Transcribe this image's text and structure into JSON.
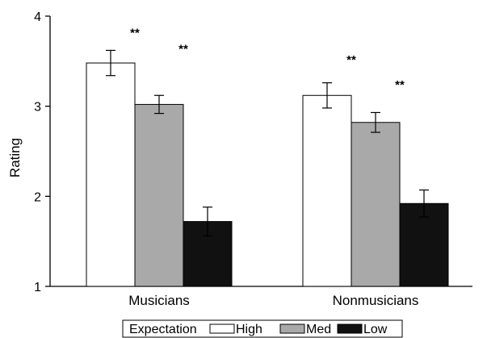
{
  "chart_data": {
    "type": "bar",
    "ylabel": "Rating",
    "xlabel": "",
    "ylim": [
      1,
      4
    ],
    "yticks": [
      1,
      2,
      3,
      4
    ],
    "categories": [
      "Musicians",
      "Nonmusicians"
    ],
    "legend_title": "Expectation",
    "legend_placement": "bottom",
    "grid": false,
    "series": [
      {
        "name": "High",
        "color": "#ffffff",
        "values": [
          3.48,
          3.12
        ],
        "errors": [
          0.14,
          0.14
        ]
      },
      {
        "name": "Med",
        "color": "#a9a9a9",
        "values": [
          3.02,
          2.82
        ],
        "errors": [
          0.1,
          0.11
        ]
      },
      {
        "name": "Low",
        "color": "#111111",
        "values": [
          1.72,
          1.92
        ],
        "errors": [
          0.16,
          0.15
        ]
      }
    ],
    "annotations": [
      {
        "text": "**",
        "category": "Musicians",
        "between": [
          "High",
          "Med"
        ],
        "y": 3.88
      },
      {
        "text": "**",
        "category": "Musicians",
        "between": [
          "Med",
          "Low"
        ],
        "y": 3.7
      },
      {
        "text": "**",
        "category": "Nonmusicians",
        "between": [
          "High",
          "Med"
        ],
        "y": 3.58
      },
      {
        "text": "**",
        "category": "Nonmusicians",
        "between": [
          "Med",
          "Low"
        ],
        "y": 3.3
      }
    ]
  }
}
